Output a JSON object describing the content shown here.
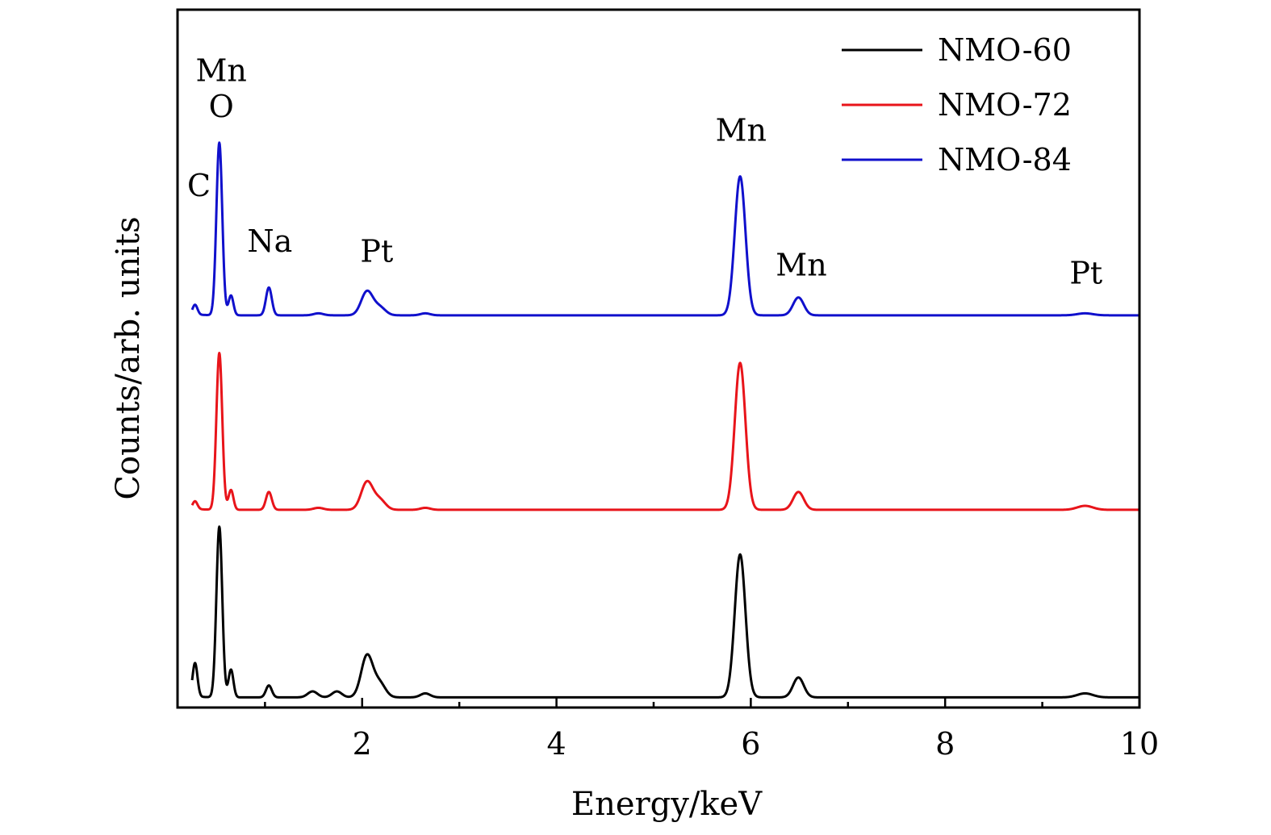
{
  "chart_data": {
    "type": "line",
    "title": "",
    "xlabel": "Energy/keV",
    "ylabel": "Counts/arb. units",
    "xlim": [
      0.1,
      10
    ],
    "x_ticks": [
      2,
      4,
      6,
      8,
      10
    ],
    "x_ticks_text": [
      "2",
      "4",
      "6",
      "8",
      "10"
    ],
    "y_ticks": [],
    "grid": false,
    "legend_position": "top-right",
    "series": [
      {
        "name": "NMO-60",
        "color": "#000000",
        "offset": 0,
        "baseline": 0.035,
        "peaks": [
          {
            "x": 0.28,
            "h": 0.17,
            "w": 0.025
          },
          {
            "x": 0.53,
            "h": 0.86,
            "w": 0.03
          },
          {
            "x": 0.65,
            "h": 0.14,
            "w": 0.025
          },
          {
            "x": 1.04,
            "h": 0.06,
            "w": 0.03
          },
          {
            "x": 1.49,
            "h": 0.03,
            "w": 0.05
          },
          {
            "x": 1.74,
            "h": 0.03,
            "w": 0.05
          },
          {
            "x": 2.05,
            "h": 0.21,
            "w": 0.06
          },
          {
            "x": 2.18,
            "h": 0.07,
            "w": 0.06
          },
          {
            "x": 2.65,
            "h": 0.02,
            "w": 0.05
          },
          {
            "x": 5.89,
            "h": 0.72,
            "w": 0.055
          },
          {
            "x": 6.49,
            "h": 0.1,
            "w": 0.055
          },
          {
            "x": 9.44,
            "h": 0.02,
            "w": 0.08
          }
        ]
      },
      {
        "name": "NMO-72",
        "color": "#e8141a",
        "offset": 0.95,
        "baseline": 0.03,
        "peaks": [
          {
            "x": 0.28,
            "h": 0.04,
            "w": 0.025
          },
          {
            "x": 0.53,
            "h": 0.79,
            "w": 0.03
          },
          {
            "x": 0.65,
            "h": 0.1,
            "w": 0.025
          },
          {
            "x": 1.04,
            "h": 0.09,
            "w": 0.03
          },
          {
            "x": 1.55,
            "h": 0.01,
            "w": 0.05
          },
          {
            "x": 2.05,
            "h": 0.14,
            "w": 0.06
          },
          {
            "x": 2.18,
            "h": 0.05,
            "w": 0.06
          },
          {
            "x": 2.65,
            "h": 0.01,
            "w": 0.05
          },
          {
            "x": 5.89,
            "h": 0.74,
            "w": 0.055
          },
          {
            "x": 6.49,
            "h": 0.09,
            "w": 0.055
          },
          {
            "x": 9.44,
            "h": 0.02,
            "w": 0.08
          }
        ]
      },
      {
        "name": "NMO-84",
        "color": "#1010cc",
        "offset": 1.93,
        "baseline": 0.03,
        "peaks": [
          {
            "x": 0.28,
            "h": 0.05,
            "w": 0.025
          },
          {
            "x": 0.53,
            "h": 0.87,
            "w": 0.03
          },
          {
            "x": 0.65,
            "h": 0.1,
            "w": 0.025
          },
          {
            "x": 1.04,
            "h": 0.14,
            "w": 0.03
          },
          {
            "x": 1.55,
            "h": 0.01,
            "w": 0.05
          },
          {
            "x": 2.05,
            "h": 0.12,
            "w": 0.06
          },
          {
            "x": 2.18,
            "h": 0.04,
            "w": 0.06
          },
          {
            "x": 2.65,
            "h": 0.01,
            "w": 0.05
          },
          {
            "x": 5.89,
            "h": 0.7,
            "w": 0.055
          },
          {
            "x": 6.49,
            "h": 0.09,
            "w": 0.055
          },
          {
            "x": 9.44,
            "h": 0.01,
            "w": 0.08
          }
        ]
      }
    ],
    "peak_labels": [
      {
        "text": "Mn",
        "x": 0.55,
        "anchor_y": 3.14
      },
      {
        "text": "O",
        "x": 0.55,
        "anchor_y": 2.96
      },
      {
        "text": "C",
        "x": 0.32,
        "anchor_y": 2.56
      },
      {
        "text": "Na",
        "x": 1.05,
        "anchor_y": 2.28
      },
      {
        "text": "Pt",
        "x": 2.15,
        "anchor_y": 2.23
      },
      {
        "text": "Mn",
        "x": 5.9,
        "anchor_y": 2.84
      },
      {
        "text": "Mn",
        "x": 6.52,
        "anchor_y": 2.16
      },
      {
        "text": "Pt",
        "x": 9.45,
        "anchor_y": 2.12
      }
    ]
  }
}
